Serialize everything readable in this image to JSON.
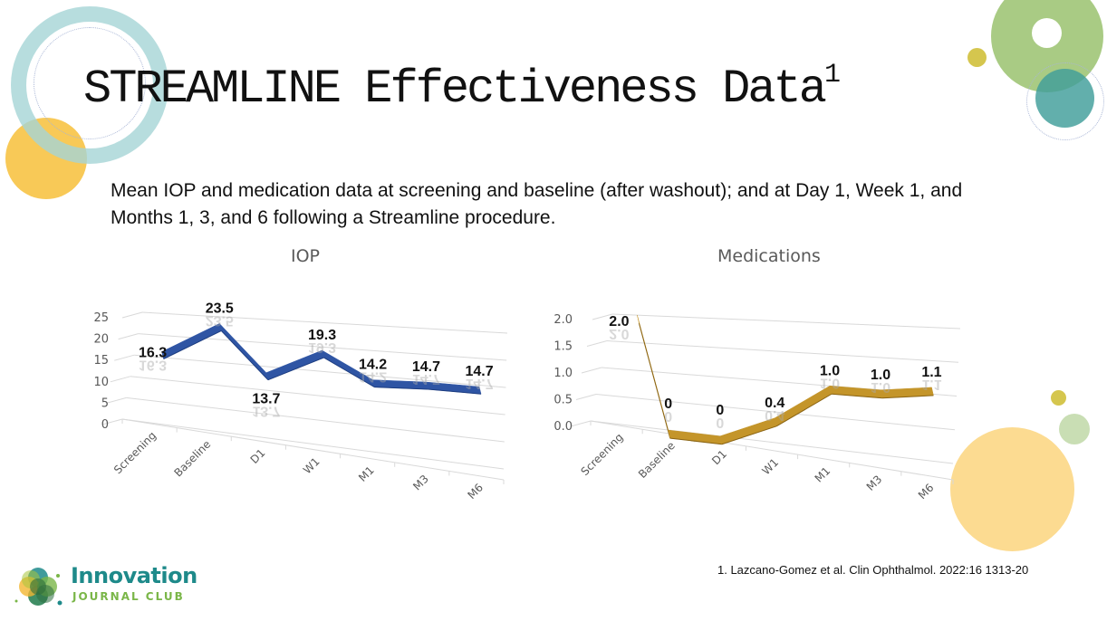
{
  "slide": {
    "title": "STREAMLINE Effectiveness Data",
    "title_superscript": "1",
    "subtitle": "Mean IOP and medication data at screening and baseline (after washout); and at Day 1, Week 1, and Months 1, 3, and 6 following a Streamline procedure.",
    "footnote": "1. Lazcano-Gomez et al. Clin Ophthalmol. 2022:16 1313-20",
    "logo": {
      "name": "Innovation",
      "subtitle": "JOURNAL CLUB"
    }
  },
  "colors": {
    "iop_series": "#2f55a4",
    "medications_series": "#c4952a",
    "gridline": "#d9d9d9",
    "deco_ring": "#b7dcdd",
    "deco_yellow": "#f8c957",
    "deco_green": "#a9cb84",
    "deco_teal": "#5fb0ad",
    "deco_olive": "#d5c64e",
    "deco_pale_yellow": "#fcdb91",
    "deco_pale_green": "#c9deb4"
  },
  "chart_data": [
    {
      "type": "line",
      "title": "IOP",
      "categories": [
        "Screening",
        "Baseline",
        "D1",
        "W1",
        "M1",
        "M3",
        "M6"
      ],
      "series": [
        {
          "name": "IOP",
          "values": [
            16.3,
            23.5,
            13.7,
            19.3,
            14.2,
            14.7,
            14.7
          ],
          "labels": [
            "16.3",
            "23.5",
            "13.7",
            "19.3",
            "14.2",
            "14.7",
            "14.7"
          ]
        }
      ],
      "ylim": [
        0,
        25
      ],
      "yticks": [
        0,
        5,
        10,
        15,
        20,
        25
      ],
      "ytick_labels": [
        "0",
        "5",
        "10",
        "15",
        "20",
        "25"
      ],
      "xlabel": "",
      "ylabel": "",
      "grid": true,
      "legend": "none",
      "style": "3d-ribbon"
    },
    {
      "type": "line",
      "title": "Medications",
      "categories": [
        "Screening",
        "Baseline",
        "D1",
        "W1",
        "M1",
        "M3",
        "M6"
      ],
      "series": [
        {
          "name": "Medications",
          "values": [
            2.0,
            0,
            0,
            0.4,
            1.0,
            1.0,
            1.1
          ],
          "labels": [
            "2.0",
            "0",
            "0",
            "0.4",
            "1.0",
            "1.0",
            "1.1"
          ]
        }
      ],
      "ylim": [
        0,
        2.0
      ],
      "yticks": [
        0,
        0.5,
        1.0,
        1.5,
        2.0
      ],
      "ytick_labels": [
        "0.0",
        "0.5",
        "1.0",
        "1.5",
        "2.0"
      ],
      "xlabel": "",
      "ylabel": "",
      "grid": true,
      "legend": "none",
      "style": "3d-ribbon"
    }
  ]
}
